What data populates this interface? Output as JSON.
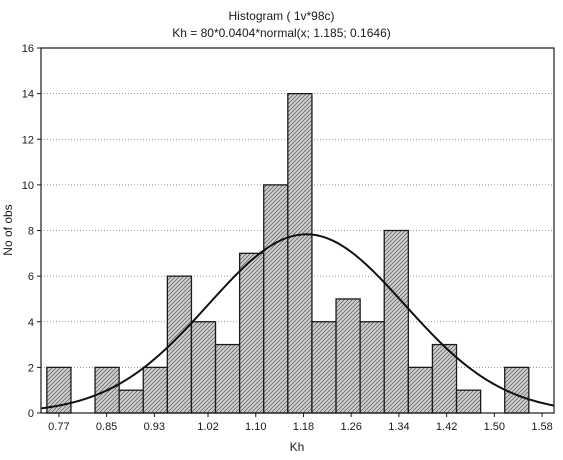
{
  "chart_data": {
    "type": "bar",
    "title": "Histogram ( 1v*98c)",
    "subtitle": "Kh = 80*0.0404*normal(x; 1.185; 0.1646)",
    "xlabel": "Kh",
    "ylabel": "No of obs",
    "ylim": [
      0,
      16
    ],
    "xlim": [
      0.74,
      1.6
    ],
    "y_ticks": [
      "0",
      "2",
      "4",
      "6",
      "8",
      "10",
      "12",
      "14",
      "16"
    ],
    "x_ticks": [
      "0.77",
      "0.85",
      "0.93",
      "1.02",
      "1.10",
      "1.18",
      "1.26",
      "1.34",
      "1.42",
      "1.50",
      "1.58"
    ],
    "x_tick_values": [
      0.77,
      0.85,
      0.93,
      1.02,
      1.1,
      1.18,
      1.26,
      1.34,
      1.42,
      1.5,
      1.58
    ],
    "grid": "horizontal dotted",
    "bin_width": 0.0404,
    "bin_centers": [
      0.77,
      0.8104,
      0.8508,
      0.8912,
      0.9316,
      0.972,
      1.0124,
      1.0528,
      1.0932,
      1.1336,
      1.174,
      1.2144,
      1.2548,
      1.2952,
      1.3356,
      1.376,
      1.4164,
      1.4568,
      1.4972,
      1.5376,
      1.578
    ],
    "values": [
      2,
      0,
      2,
      1,
      2,
      6,
      4,
      3,
      7,
      10,
      14,
      4,
      5,
      4,
      8,
      2,
      3,
      1,
      0,
      2,
      0
    ],
    "series": [
      {
        "type": "bar",
        "values": [
          2,
          0,
          2,
          1,
          2,
          6,
          4,
          3,
          7,
          10,
          14,
          4,
          5,
          4,
          8,
          2,
          3,
          1,
          0,
          2,
          0
        ]
      },
      {
        "type": "line",
        "function": "normal",
        "n": 80,
        "bin_width": 0.0404,
        "mean": 1.185,
        "sd": 0.1646
      }
    ],
    "colors": {
      "bar_fill": "#c8c8c8",
      "bar_stroke": "#1a1a1a",
      "hatch": "#555555",
      "curve": "#111111"
    }
  }
}
